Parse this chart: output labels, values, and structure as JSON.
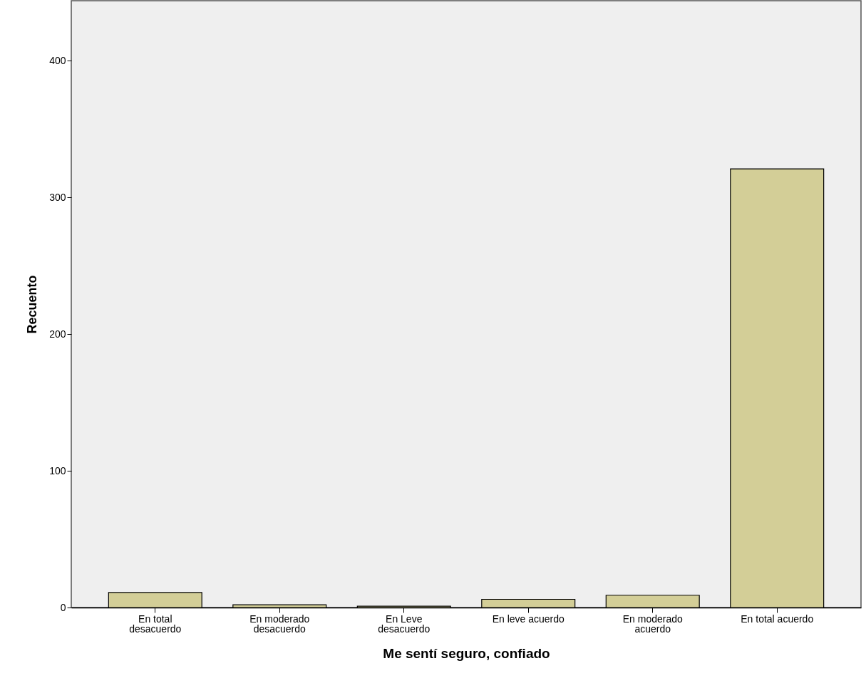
{
  "chart_data": {
    "type": "bar",
    "xlabel": "Me sentí seguro, confiado",
    "ylabel": "Recuento",
    "categories": [
      "En total desacuerdo",
      "En moderado desacuerdo",
      "En Leve desacuerdo",
      "En leve acuerdo",
      "En moderado acuerdo",
      "En total acuerdo"
    ],
    "values": [
      11,
      2,
      1,
      6,
      9,
      321
    ],
    "color": "#d3ce97",
    "ylim": [
      0,
      444
    ],
    "yticks": [
      0,
      100,
      200,
      300,
      400
    ],
    "grid": false
  }
}
